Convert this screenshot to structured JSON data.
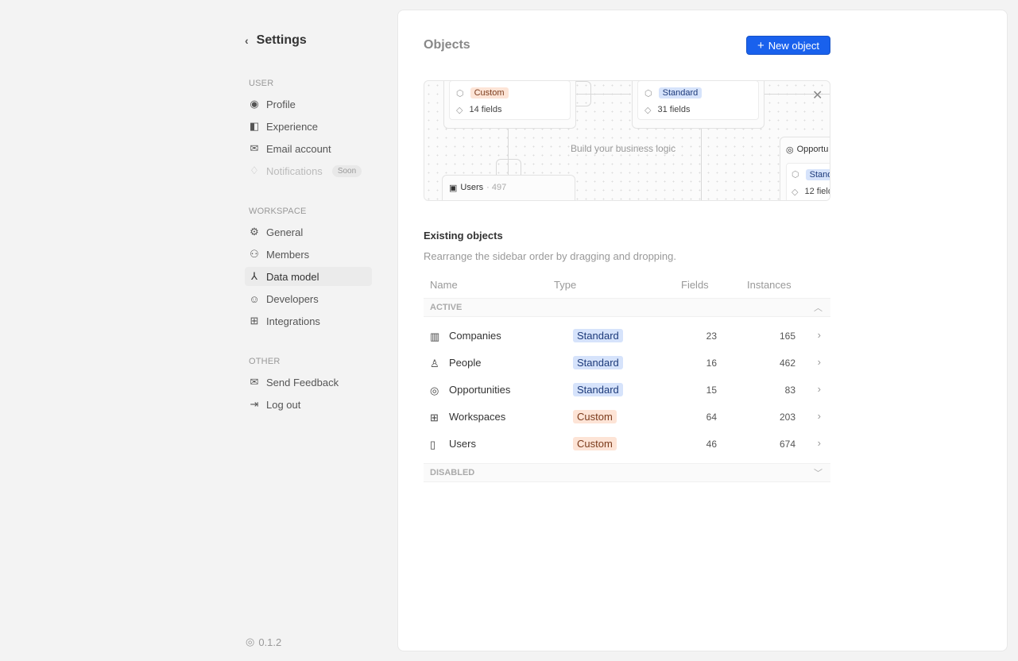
{
  "sidebar": {
    "back_label": "Settings",
    "sections": [
      {
        "title": "USER"
      },
      {
        "title": "WORKSPACE"
      },
      {
        "title": "OTHER"
      }
    ],
    "items": [
      {
        "label": "Profile",
        "icon": "user-circle-icon"
      },
      {
        "label": "Experience",
        "icon": "color-swatch-icon"
      },
      {
        "label": "Email account",
        "icon": "mail-icon"
      },
      {
        "label": "Notifications",
        "icon": "bell-icon",
        "badge": "Soon"
      },
      {
        "label": "General",
        "icon": "gear-icon"
      },
      {
        "label": "Members",
        "icon": "users-icon"
      },
      {
        "label": "Data model",
        "icon": "hierarchy-icon",
        "active": true
      },
      {
        "label": "Developers",
        "icon": "robot-icon"
      },
      {
        "label": "Integrations",
        "icon": "apps-icon"
      },
      {
        "label": "Send Feedback",
        "icon": "mail-icon"
      },
      {
        "label": "Log out",
        "icon": "logout-icon"
      }
    ],
    "version": "0.1.2"
  },
  "main": {
    "title": "Objects",
    "new_button": "New object",
    "banner": {
      "caption": "Build your business logic",
      "cards": [
        {
          "badge": "Custom",
          "fields": "14 fields"
        },
        {
          "badge": "Standard",
          "fields": "31 fields"
        },
        {
          "name": "Users",
          "count": "· 497"
        },
        {
          "name": "Opportu",
          "badge": "Stand",
          "fields": "12 field"
        }
      ]
    },
    "existing_title": "Existing objects",
    "existing_desc": "Rearrange the sidebar order by dragging and dropping.",
    "columns": [
      "Name",
      "Type",
      "Fields",
      "Instances"
    ],
    "groups": {
      "active": "ACTIVE",
      "disabled": "DISABLED"
    },
    "rows": [
      {
        "name": "Companies",
        "type": "Standard",
        "fields": "23",
        "instances": "165",
        "icon": "building-icon"
      },
      {
        "name": "People",
        "type": "Standard",
        "fields": "16",
        "instances": "462",
        "icon": "user-icon"
      },
      {
        "name": "Opportunities",
        "type": "Standard",
        "fields": "15",
        "instances": "83",
        "icon": "target-icon"
      },
      {
        "name": "Workspaces",
        "type": "Custom",
        "fields": "64",
        "instances": "203",
        "icon": "apps-icon"
      },
      {
        "name": "Users",
        "type": "Custom",
        "fields": "46",
        "instances": "674",
        "icon": "mouse-icon"
      }
    ]
  },
  "colors": {
    "accent": "#1961ed",
    "standard_bg": "#d6e3fb",
    "custom_bg": "#fde4d6"
  }
}
